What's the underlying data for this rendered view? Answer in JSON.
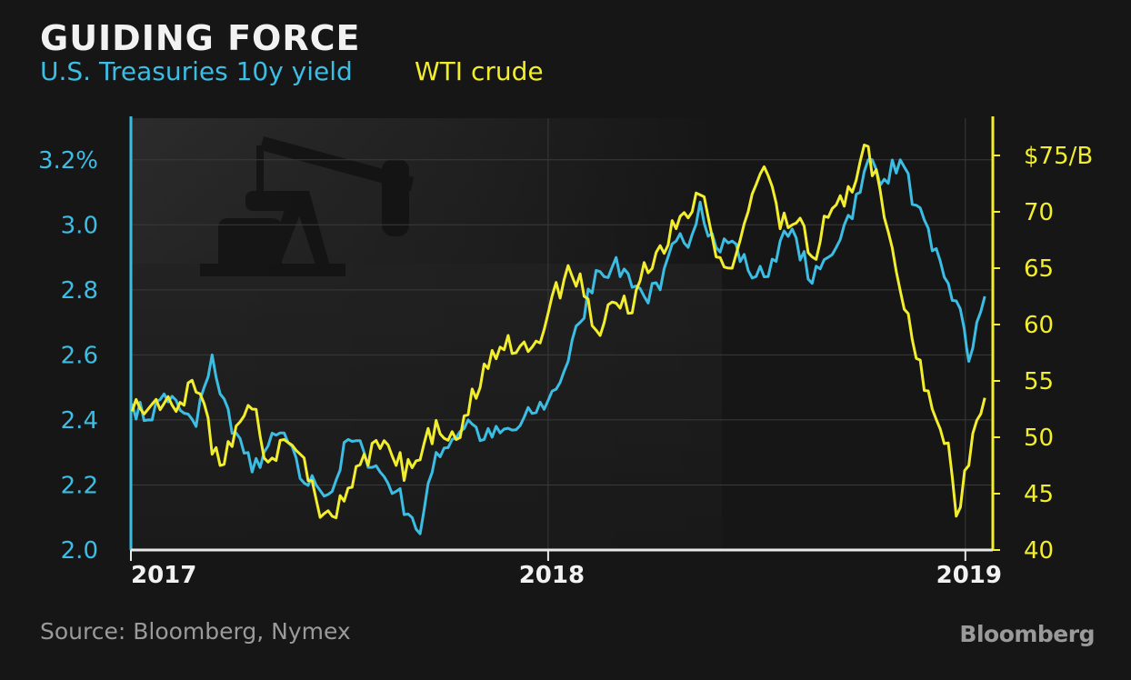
{
  "header": {
    "title": "GUIDING FORCE",
    "series_left_label": "U.S. Treasuries 10y yield",
    "series_right_label": "WTI crude"
  },
  "footer": {
    "source": "Source: Bloomberg, Nymex",
    "brand": "Bloomberg"
  },
  "colors": {
    "treasury": "#3cbde3",
    "crude": "#f2ee2e",
    "background": "#161616",
    "grid": "#3a3a3a"
  },
  "chart_data": {
    "type": "line",
    "title": "GUIDING FORCE",
    "xlabel": "",
    "ylabel_left": "",
    "ylabel_right": "",
    "x_axis": {
      "type": "date",
      "range": [
        "2017-01-01",
        "2019-01-25"
      ],
      "ticks": [
        {
          "date": "2017-01-01",
          "label": "2017"
        },
        {
          "date": "2018-01-01",
          "label": "2018"
        },
        {
          "date": "2019-01-01",
          "label": "2019"
        }
      ]
    },
    "y_left": {
      "range": [
        2.0,
        3.3
      ],
      "ticks": [
        {
          "value": 2.0,
          "label": "2.0"
        },
        {
          "value": 2.2,
          "label": "2.2"
        },
        {
          "value": 2.4,
          "label": "2.4"
        },
        {
          "value": 2.6,
          "label": "2.6"
        },
        {
          "value": 2.8,
          "label": "2.8"
        },
        {
          "value": 3.0,
          "label": "3.0"
        },
        {
          "value": 3.2,
          "label": "3.2%"
        }
      ]
    },
    "y_right": {
      "range": [
        40,
        77.5
      ],
      "ticks": [
        {
          "value": 40,
          "label": "40"
        },
        {
          "value": 45,
          "label": "45"
        },
        {
          "value": 50,
          "label": "50"
        },
        {
          "value": 55,
          "label": "55"
        },
        {
          "value": 60,
          "label": "60"
        },
        {
          "value": 65,
          "label": "65"
        },
        {
          "value": 70,
          "label": "70"
        },
        {
          "value": 75,
          "label": "$75/B"
        }
      ]
    },
    "grid": true,
    "legend": "top-left (colored subtitle text)",
    "series": [
      {
        "name": "U.S. Treasuries 10y yield",
        "axis": "left",
        "points": [
          [
            "2017-01-02",
            2.45
          ],
          [
            "2017-01-16",
            2.4
          ],
          [
            "2017-01-30",
            2.48
          ],
          [
            "2017-02-13",
            2.43
          ],
          [
            "2017-02-27",
            2.38
          ],
          [
            "2017-03-06",
            2.5
          ],
          [
            "2017-03-13",
            2.6
          ],
          [
            "2017-03-20",
            2.48
          ],
          [
            "2017-04-03",
            2.36
          ],
          [
            "2017-04-17",
            2.24
          ],
          [
            "2017-05-01",
            2.32
          ],
          [
            "2017-05-15",
            2.36
          ],
          [
            "2017-05-29",
            2.22
          ],
          [
            "2017-06-12",
            2.2
          ],
          [
            "2017-06-26",
            2.18
          ],
          [
            "2017-07-10",
            2.34
          ],
          [
            "2017-07-24",
            2.3
          ],
          [
            "2017-08-07",
            2.24
          ],
          [
            "2017-08-21",
            2.18
          ],
          [
            "2017-09-04",
            2.1
          ],
          [
            "2017-09-11",
            2.05
          ],
          [
            "2017-09-25",
            2.3
          ],
          [
            "2017-10-09",
            2.34
          ],
          [
            "2017-10-23",
            2.4
          ],
          [
            "2017-11-06",
            2.34
          ],
          [
            "2017-11-20",
            2.36
          ],
          [
            "2017-12-04",
            2.37
          ],
          [
            "2017-12-18",
            2.42
          ],
          [
            "2018-01-01",
            2.46
          ],
          [
            "2018-01-15",
            2.55
          ],
          [
            "2018-01-29",
            2.7
          ],
          [
            "2018-02-12",
            2.86
          ],
          [
            "2018-02-26",
            2.87
          ],
          [
            "2018-03-12",
            2.85
          ],
          [
            "2018-03-26",
            2.78
          ],
          [
            "2018-04-09",
            2.8
          ],
          [
            "2018-04-23",
            2.95
          ],
          [
            "2018-05-07",
            2.97
          ],
          [
            "2018-05-14",
            3.07
          ],
          [
            "2018-05-28",
            2.93
          ],
          [
            "2018-06-11",
            2.95
          ],
          [
            "2018-06-25",
            2.86
          ],
          [
            "2018-07-09",
            2.84
          ],
          [
            "2018-07-23",
            2.95
          ],
          [
            "2018-08-06",
            2.96
          ],
          [
            "2018-08-20",
            2.82
          ],
          [
            "2018-09-03",
            2.9
          ],
          [
            "2018-09-17",
            3.0
          ],
          [
            "2018-10-01",
            3.1
          ],
          [
            "2018-10-08",
            3.2
          ],
          [
            "2018-10-22",
            3.14
          ],
          [
            "2018-11-05",
            3.2
          ],
          [
            "2018-11-19",
            3.06
          ],
          [
            "2018-12-03",
            2.92
          ],
          [
            "2018-12-17",
            2.82
          ],
          [
            "2018-12-31",
            2.68
          ],
          [
            "2019-01-04",
            2.58
          ],
          [
            "2019-01-11",
            2.7
          ],
          [
            "2019-01-18",
            2.78
          ]
        ]
      },
      {
        "name": "WTI crude",
        "axis": "right",
        "points": [
          [
            "2017-01-02",
            52.3
          ],
          [
            "2017-01-16",
            52.5
          ],
          [
            "2017-01-30",
            53.0
          ],
          [
            "2017-02-13",
            53.1
          ],
          [
            "2017-02-27",
            54.0
          ],
          [
            "2017-03-06",
            53.0
          ],
          [
            "2017-03-13",
            48.5
          ],
          [
            "2017-03-20",
            47.5
          ],
          [
            "2017-04-03",
            51.0
          ],
          [
            "2017-04-17",
            52.5
          ],
          [
            "2017-05-01",
            47.8
          ],
          [
            "2017-05-15",
            49.8
          ],
          [
            "2017-05-29",
            48.5
          ],
          [
            "2017-06-12",
            44.5
          ],
          [
            "2017-06-26",
            43.0
          ],
          [
            "2017-07-10",
            45.5
          ],
          [
            "2017-07-24",
            48.5
          ],
          [
            "2017-08-07",
            49.0
          ],
          [
            "2017-08-21",
            47.5
          ],
          [
            "2017-09-04",
            47.3
          ],
          [
            "2017-09-11",
            48.0
          ],
          [
            "2017-09-25",
            51.5
          ],
          [
            "2017-10-09",
            50.5
          ],
          [
            "2017-10-23",
            52.0
          ],
          [
            "2017-11-06",
            56.5
          ],
          [
            "2017-11-20",
            58.0
          ],
          [
            "2017-12-04",
            57.5
          ],
          [
            "2017-12-18",
            58.0
          ],
          [
            "2018-01-01",
            61.0
          ],
          [
            "2018-01-15",
            64.0
          ],
          [
            "2018-01-29",
            64.5
          ],
          [
            "2018-02-12",
            59.5
          ],
          [
            "2018-02-26",
            62.0
          ],
          [
            "2018-03-12",
            61.0
          ],
          [
            "2018-03-26",
            65.5
          ],
          [
            "2018-04-09",
            67.0
          ],
          [
            "2018-04-23",
            68.5
          ],
          [
            "2018-05-07",
            70.0
          ],
          [
            "2018-05-14",
            71.5
          ],
          [
            "2018-05-28",
            66.0
          ],
          [
            "2018-06-11",
            65.0
          ],
          [
            "2018-06-25",
            70.0
          ],
          [
            "2018-07-09",
            74.0
          ],
          [
            "2018-07-23",
            68.5
          ],
          [
            "2018-08-06",
            69.0
          ],
          [
            "2018-08-20",
            66.0
          ],
          [
            "2018-09-03",
            69.5
          ],
          [
            "2018-09-17",
            70.5
          ],
          [
            "2018-10-01",
            74.5
          ],
          [
            "2018-10-08",
            75.8
          ],
          [
            "2018-10-22",
            69.5
          ],
          [
            "2018-11-05",
            63.0
          ],
          [
            "2018-11-19",
            57.0
          ],
          [
            "2018-12-03",
            52.5
          ],
          [
            "2018-12-17",
            49.5
          ],
          [
            "2018-12-24",
            43.0
          ],
          [
            "2019-01-04",
            47.5
          ],
          [
            "2019-01-11",
            51.5
          ],
          [
            "2019-01-18",
            53.5
          ]
        ]
      }
    ]
  }
}
